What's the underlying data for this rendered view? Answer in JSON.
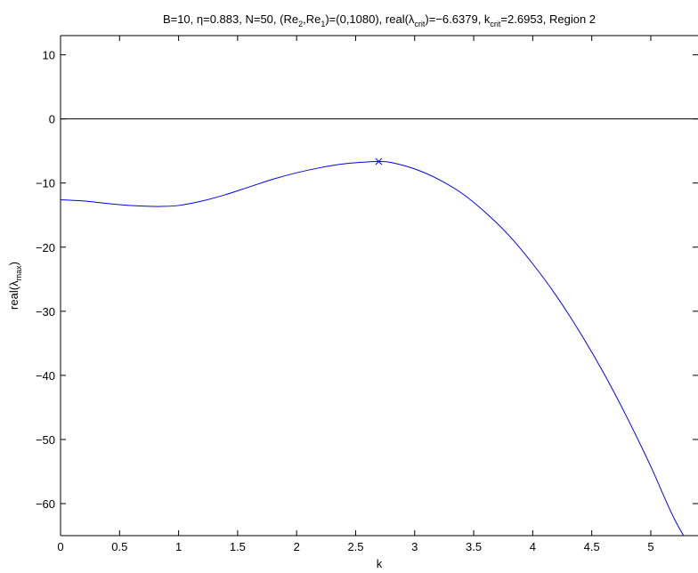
{
  "chart_data": {
    "type": "line",
    "title_parts": {
      "p1": "B=10, η=0.883, N=50, (Re",
      "s1": "2",
      "p2": ",Re",
      "s2": "1",
      "p3": ")=(0,1080), real(λ",
      "s3": "crit",
      "p4": ")=−6.6379, k",
      "s4": "crit",
      "p5": "=2.6953, Region 2"
    },
    "xlabel": "k",
    "ylabel_parts": {
      "main": "real(λ",
      "sub": "max",
      "close": ")"
    },
    "xlim": [
      0,
      5.4
    ],
    "ylim": [
      -65,
      13
    ],
    "xticks": [
      0,
      0.5,
      1,
      1.5,
      2,
      2.5,
      3,
      3.5,
      4,
      4.5,
      5
    ],
    "xtick_labels": [
      "0",
      "0.5",
      "1",
      "1.5",
      "2",
      "2.5",
      "3",
      "3.5",
      "4",
      "4.5",
      "5"
    ],
    "yticks": [
      10,
      0,
      -10,
      -20,
      -30,
      -40,
      -50,
      -60
    ],
    "ytick_labels": [
      "10",
      "0",
      "−10",
      "−20",
      "−30",
      "−40",
      "−50",
      "−60"
    ],
    "grid": false,
    "reference_line_y": 0,
    "series": [
      {
        "color": "#0000ff",
        "x": [
          0,
          0.2,
          0.4,
          0.6,
          0.8,
          0.85,
          1.0,
          1.2,
          1.4,
          1.6,
          1.8,
          2.0,
          2.2,
          2.4,
          2.6,
          2.7,
          2.8,
          3.0,
          3.2,
          3.4,
          3.6,
          3.8,
          4.0,
          4.2,
          4.4,
          4.6,
          4.8,
          5.0,
          5.2,
          5.4
        ],
        "y": [
          -12.6,
          -12.8,
          -13.2,
          -13.5,
          -13.65,
          -13.65,
          -13.5,
          -12.8,
          -11.8,
          -10.6,
          -9.4,
          -8.4,
          -7.6,
          -7.0,
          -6.7,
          -6.64,
          -6.8,
          -7.8,
          -9.4,
          -11.6,
          -14.6,
          -18.2,
          -22.6,
          -27.6,
          -33.3,
          -39.6,
          -46.6,
          -54.2,
          -62.4,
          -68.8
        ]
      }
    ],
    "marker": {
      "x": 2.6953,
      "y": -6.6379,
      "symbol": "x",
      "color": "#0000ff"
    }
  }
}
